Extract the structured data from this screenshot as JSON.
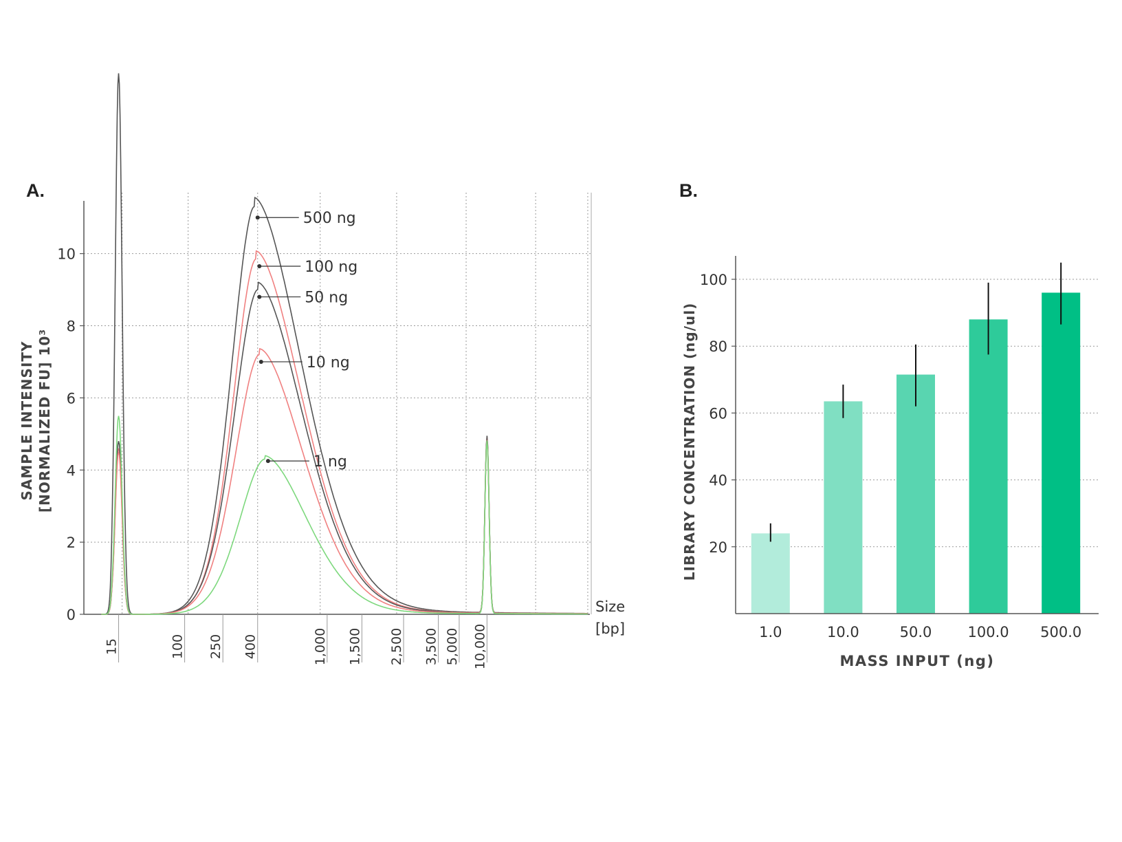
{
  "chart_data": [
    {
      "panel": "A.",
      "type": "line",
      "title": "",
      "ylabel_line1": "SAMPLE INTENSITY",
      "ylabel_line2": "[NORMALIZED FU] 10³",
      "xlabel_line1": "Size",
      "xlabel_line2": "[bp]",
      "ylim": [
        0,
        11.5
      ],
      "yticks": [
        "0",
        "2",
        "4",
        "6",
        "8",
        "10"
      ],
      "ytick_values": [
        0,
        2,
        4,
        6,
        8,
        10
      ],
      "xticks": [
        {
          "label": "15",
          "pos": 1.0
        },
        {
          "label": "100",
          "pos": 2.9
        },
        {
          "label": "250",
          "pos": 4.0
        },
        {
          "label": "400",
          "pos": 5.0
        },
        {
          "label": "1,000",
          "pos": 7.0
        },
        {
          "label": "1,500",
          "pos": 8.0
        },
        {
          "label": "2,500",
          "pos": 9.2
        },
        {
          "label": "3,500",
          "pos": 10.2
        },
        {
          "label": "5,000",
          "pos": 10.8
        },
        {
          "label": "10,000",
          "pos": 11.6
        }
      ],
      "xlim": [
        0,
        14.6
      ],
      "series": [
        {
          "name": "500 ng",
          "color": "#555555",
          "lower_marker": 15,
          "main_peak": {
            "x": 4.9,
            "height": 11.3,
            "left_width": 0.65,
            "right_width": 1.35
          },
          "upper_marker": 4.9,
          "annotation": {
            "x": 5.0,
            "y": 11.0,
            "label": "500 ng"
          }
        },
        {
          "name": "100 ng",
          "color": "#f08080",
          "lower_marker": 4.6,
          "main_peak": {
            "x": 4.95,
            "height": 9.85,
            "left_width": 0.65,
            "right_width": 1.3
          },
          "upper_marker": 4.85,
          "annotation": {
            "x": 5.05,
            "y": 9.65,
            "label": "100 ng"
          }
        },
        {
          "name": "50 ng",
          "color": "#555555",
          "lower_marker": 4.8,
          "main_peak": {
            "x": 5.0,
            "height": 9.0,
            "left_width": 0.68,
            "right_width": 1.28
          },
          "upper_marker": 4.85,
          "annotation": {
            "x": 5.05,
            "y": 8.8,
            "label": "50 ng"
          }
        },
        {
          "name": "10 ng",
          "color": "#f08080",
          "lower_marker": 4.5,
          "main_peak": {
            "x": 5.05,
            "height": 7.2,
            "left_width": 0.7,
            "right_width": 1.25
          },
          "upper_marker": 4.8,
          "annotation": {
            "x": 5.1,
            "y": 7.0,
            "label": "10 ng"
          }
        },
        {
          "name": "1 ng",
          "color": "#7dd87d",
          "lower_marker": 5.5,
          "main_peak": {
            "x": 5.2,
            "height": 4.3,
            "left_width": 0.72,
            "right_width": 1.2
          },
          "upper_marker": 4.8,
          "annotation": {
            "x": 5.3,
            "y": 4.25,
            "label": "1 ng"
          }
        }
      ]
    },
    {
      "panel": "B.",
      "type": "bar",
      "title": "",
      "xlabel": "MASS INPUT (ng)",
      "ylabel": "LIBRARY CONCENTRATION (ng/ul)",
      "ylim": [
        0,
        107
      ],
      "yticks": [
        "20",
        "40",
        "60",
        "80",
        "100"
      ],
      "ytick_values": [
        20,
        40,
        60,
        80,
        100
      ],
      "categories": [
        "1.0",
        "10.0",
        "50.0",
        "100.0",
        "500.0"
      ],
      "values": [
        24,
        63.5,
        71.5,
        88,
        96
      ],
      "error_low": [
        21.5,
        58.5,
        62,
        77.5,
        86.5
      ],
      "error_high": [
        27,
        68.5,
        80.5,
        99,
        105
      ],
      "colors": [
        "#b2ecdb",
        "#80dfc2",
        "#59d5b0",
        "#2ecb9a",
        "#00bf85"
      ]
    }
  ]
}
